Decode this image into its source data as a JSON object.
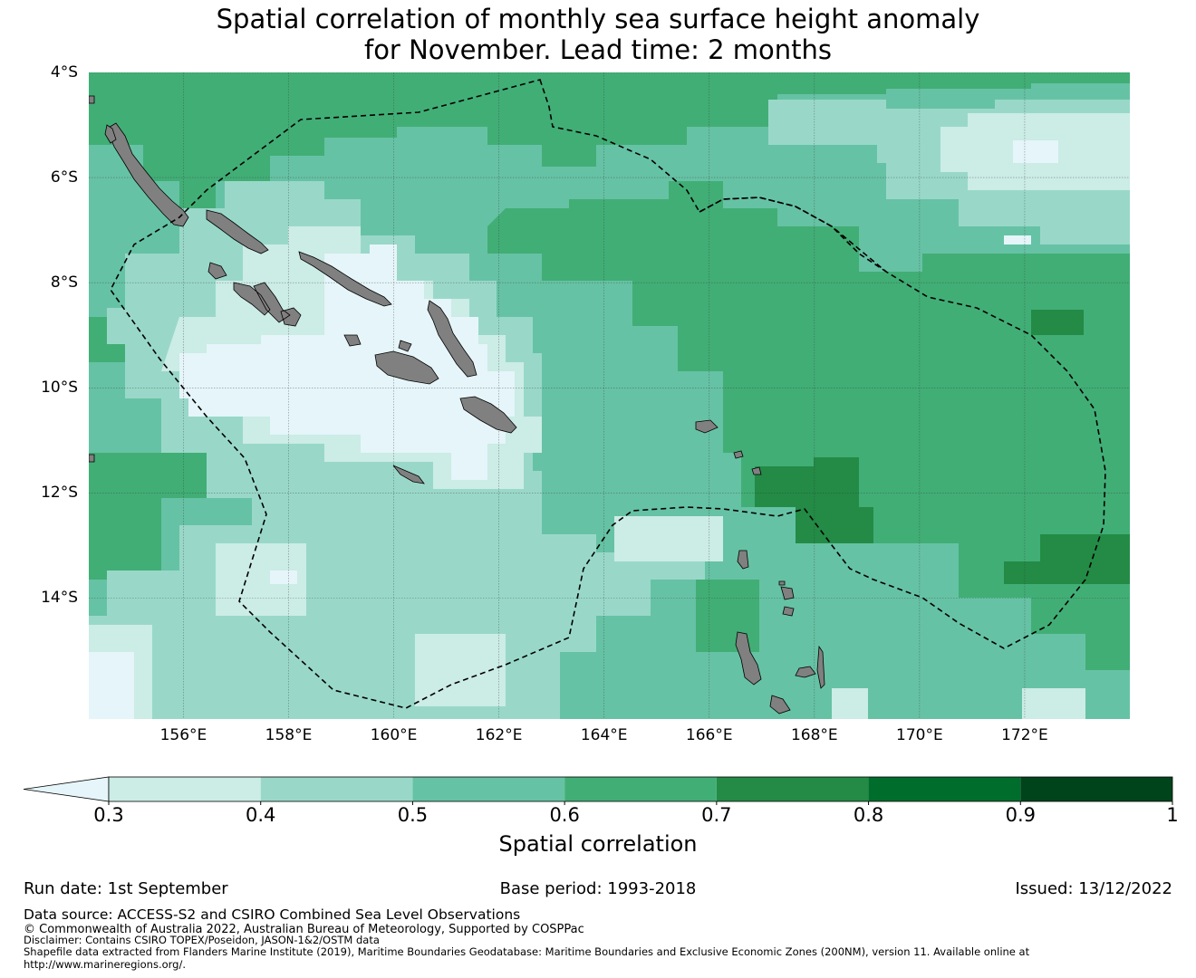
{
  "title": {
    "line1": "Spatial correlation of monthly sea surface height anomaly",
    "line2": "for November. Lead time: 2 months"
  },
  "map": {
    "lat_labels": [
      "4°S",
      "6°S",
      "8°S",
      "10°S",
      "12°S",
      "14°S"
    ],
    "lon_labels": [
      "156°E",
      "158°E",
      "160°E",
      "162°E",
      "164°E",
      "166°E",
      "168°E",
      "170°E",
      "172°E"
    ],
    "land_color": "#808080",
    "boundary_style": "dashed black"
  },
  "colorbar": {
    "label": "Spatial correlation",
    "ticks": [
      "0.3",
      "0.4",
      "0.5",
      "0.6",
      "0.7",
      "0.8",
      "0.9",
      "1"
    ],
    "colors": [
      "#e5f5f9",
      "#ccece6",
      "#99d8c9",
      "#66c2a4",
      "#41ae76",
      "#238b45",
      "#006d2c",
      "#00441b"
    ],
    "extend": "min"
  },
  "footer": {
    "run_date": "Run date: 1st September",
    "base_period": "Base period: 1993-2018",
    "issued": "Issued: 13/12/2022",
    "data_source": "Data source: ACCESS-S2 and CSIRO Combined Sea Level Observations",
    "copyright": "© Commonwealth of Australia 2022, Australian Bureau of Meteorology, Supported by COSPPac",
    "disclaimer": "Disclaimer: Contains CSIRO TOPEX/Poseidon, JASON-1&2/OSTM data",
    "shapefile1": "Shapefile data extracted from Flanders Marine Institute (2019), Maritime Boundaries Geodatabase: Maritime Boundaries and Exclusive Economic Zones (200NM), version 11. Available online at",
    "shapefile2": "http://www.marineregions.org/."
  }
}
